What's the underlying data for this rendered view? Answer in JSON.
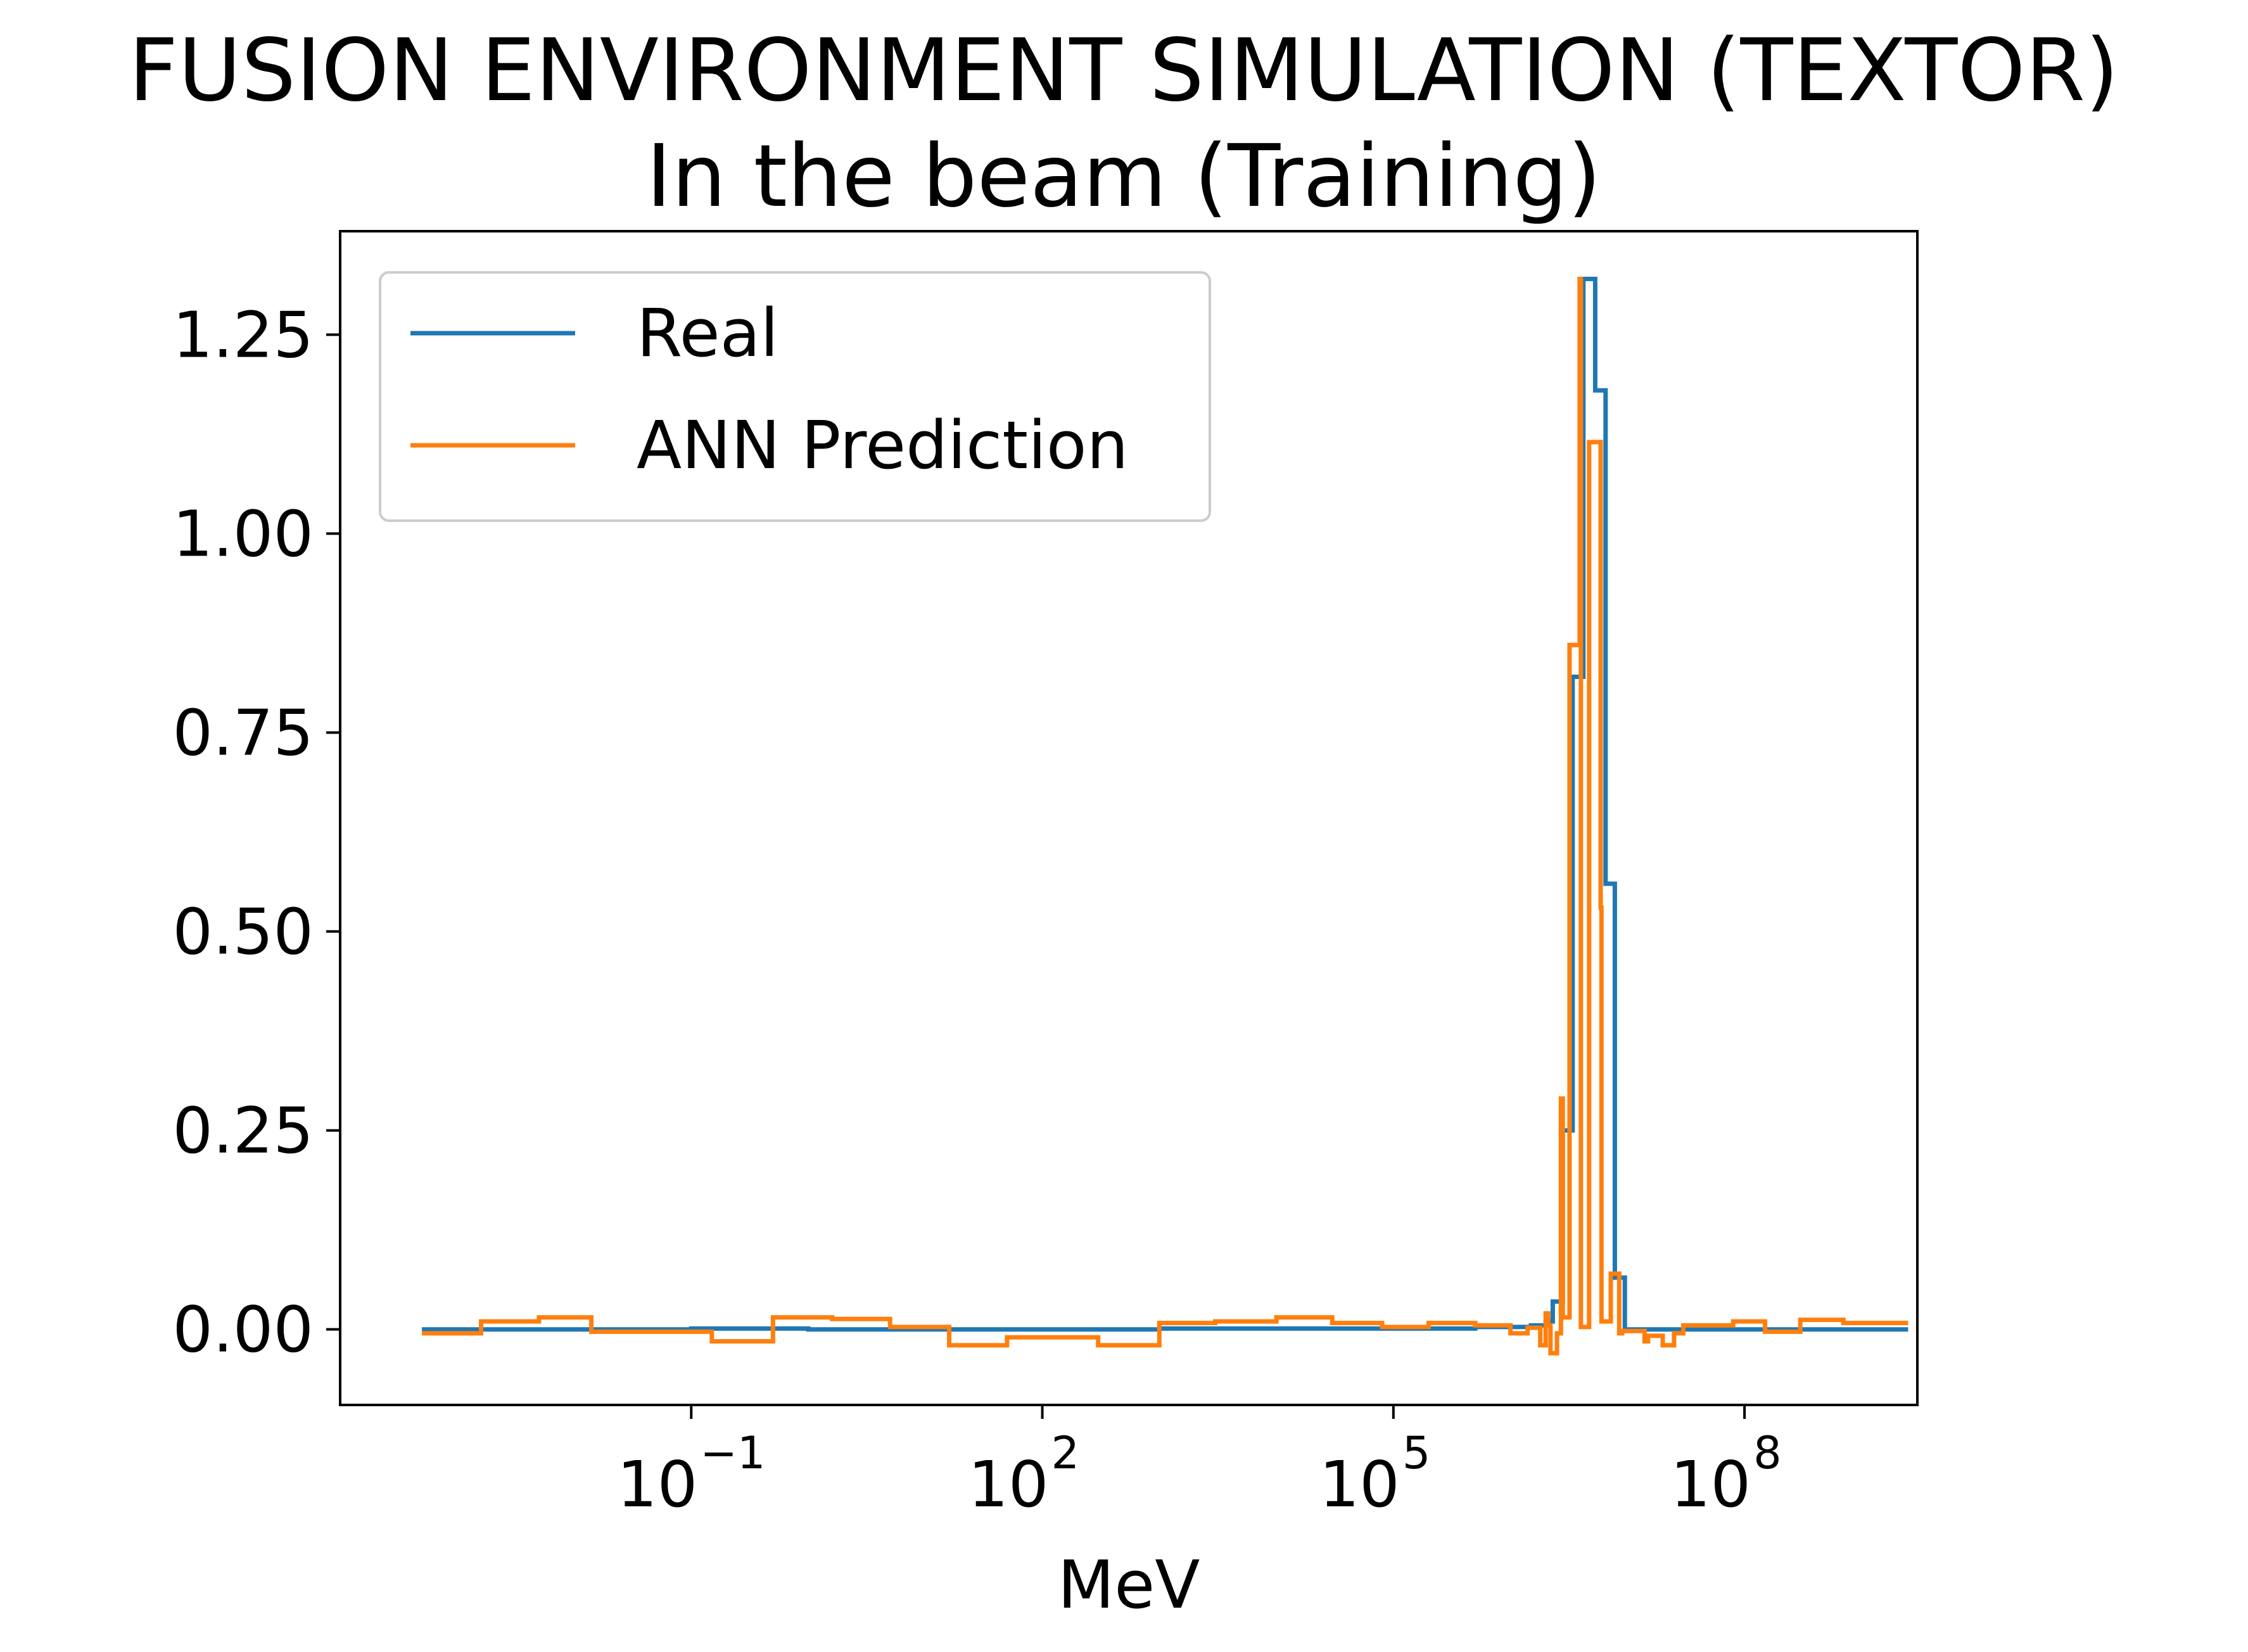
{
  "chart_data": {
    "type": "line",
    "step": true,
    "title": "FUSION ENVIRONMENT SIMULATION (TEXTOR)",
    "subtitle": "In the beam (Training)",
    "xlabel": "MeV",
    "ylabel": "",
    "xscale": "log",
    "xlim": [
      0.0001,
      3000000000
    ],
    "ylim": [
      -0.095,
      1.38
    ],
    "grid": false,
    "legend_position": "upper-left",
    "x_ticks": [
      {
        "base": "10",
        "exp": "−1",
        "value": 0.1
      },
      {
        "base": "10",
        "exp": "2",
        "value": 100
      },
      {
        "base": "10",
        "exp": "5",
        "value": 100000
      },
      {
        "base": "10",
        "exp": "8",
        "value": 100000000
      }
    ],
    "y_ticks": [
      {
        "label": "0.00",
        "value": 0.0
      },
      {
        "label": "0.25",
        "value": 0.25
      },
      {
        "label": "0.50",
        "value": 0.5
      },
      {
        "label": "0.75",
        "value": 0.75
      },
      {
        "label": "1.00",
        "value": 1.0
      },
      {
        "label": "1.25",
        "value": 1.25
      }
    ],
    "series": [
      {
        "name": "Real",
        "color": "#1f77b4",
        "points": [
          [
            0.0005,
            0.0
          ],
          [
            0.005,
            0.0
          ],
          [
            0.1,
            0.001
          ],
          [
            1,
            0.0
          ],
          [
            30,
            0.0
          ],
          [
            1000,
            0.001
          ],
          [
            50000,
            0.001
          ],
          [
            500000,
            0.003
          ],
          [
            1500000,
            0.005
          ],
          [
            2000000,
            0.01
          ],
          [
            2300000,
            0.035
          ],
          [
            2800000,
            0.25
          ],
          [
            3400000,
            0.82
          ],
          [
            4200000,
            1.32
          ],
          [
            5300000,
            1.18
          ],
          [
            6500000,
            0.56
          ],
          [
            7800000,
            0.065
          ],
          [
            9500000,
            0.0
          ],
          [
            20000000,
            0.0
          ],
          [
            100000000,
            0.0
          ],
          [
            2500000000,
            0.0
          ]
        ]
      },
      {
        "name": "ANN Prediction",
        "color": "#ff7f0e",
        "points": [
          [
            0.0005,
            -0.005
          ],
          [
            0.0016,
            0.01
          ],
          [
            0.005,
            0.015
          ],
          [
            0.014,
            -0.003
          ],
          [
            0.15,
            -0.015
          ],
          [
            0.5,
            0.015
          ],
          [
            1.6,
            0.013
          ],
          [
            5,
            0.003
          ],
          [
            16,
            -0.02
          ],
          [
            50,
            -0.01
          ],
          [
            300,
            -0.02
          ],
          [
            1000,
            0.008
          ],
          [
            3000,
            0.01
          ],
          [
            10000,
            0.015
          ],
          [
            30000,
            0.008
          ],
          [
            80000,
            0.003
          ],
          [
            200000,
            0.008
          ],
          [
            500000,
            0.005
          ],
          [
            1000000,
            -0.005
          ],
          [
            1400000,
            0.002
          ],
          [
            2000000,
            0.02
          ],
          [
            2800000,
            0.015
          ],
          [
            4000000,
            0.003
          ],
          [
            6000000,
            0.01
          ],
          [
            9000000,
            -0.002
          ],
          [
            14000000,
            -0.015
          ],
          [
            20000000,
            -0.02
          ],
          [
            25000000,
            -0.005
          ],
          [
            2100000,
            0.005
          ],
          [
            1800000,
            -0.02
          ],
          [
            2200000,
            -0.03
          ],
          [
            2500000,
            -0.005
          ],
          [
            2700000,
            0.29
          ],
          [
            3200000,
            0.86
          ],
          [
            3900000,
            1.32
          ],
          [
            4700000,
            1.115
          ],
          [
            5900000,
            0.53
          ],
          [
            7200000,
            0.07
          ],
          [
            8500000,
            -0.005
          ],
          [
            15000000,
            -0.008
          ],
          [
            30000000,
            0.005
          ],
          [
            80000000,
            0.01
          ],
          [
            150000000,
            -0.003
          ],
          [
            300000000,
            0.012
          ],
          [
            700000000,
            0.008
          ],
          [
            2500000000,
            0.008
          ]
        ]
      }
    ]
  }
}
